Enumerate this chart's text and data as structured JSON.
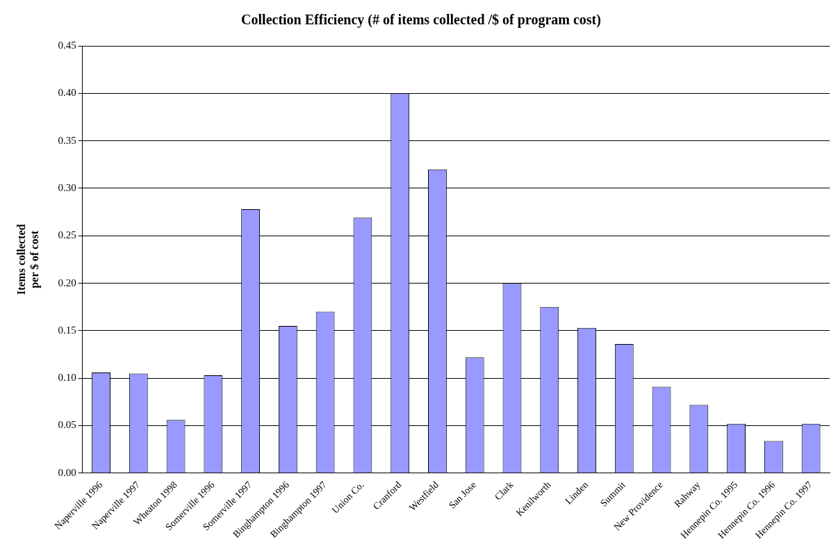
{
  "chart_data": {
    "type": "bar",
    "title": "Collection Efficiency (# of items collected /$ of program cost)",
    "ylabel": "Items collected\nper $ of cost",
    "categories": [
      "Naperville 1996",
      "Naperville 1997",
      "Wheaton 1998",
      "Somerville 1996",
      "Somerville 1997",
      "Binghampton 1996",
      "Binghampton 1997",
      "Union Co.",
      "Cranford",
      "Westfield",
      "San Jose",
      "Clark",
      "Kenilworth",
      "Linden",
      "Summit",
      "New Providence",
      "Rahway",
      "Hennepin Co. 1995",
      "Hennepin Co. 1996",
      "Hennepin Co. 1997"
    ],
    "values": [
      0.106,
      0.105,
      0.056,
      0.103,
      0.278,
      0.155,
      0.17,
      0.269,
      0.4,
      0.32,
      0.122,
      0.2,
      0.175,
      0.153,
      0.136,
      0.091,
      0.072,
      0.052,
      0.034,
      0.052
    ],
    "color": "#9999ff",
    "ylim": [
      0,
      0.45
    ],
    "yticks": [
      {
        "value": 0,
        "label": "0.00"
      },
      {
        "value": 0.05,
        "label": "0.05"
      },
      {
        "value": 0.1,
        "label": "0.10"
      },
      {
        "value": 0.15,
        "label": "0.15"
      },
      {
        "value": 0.2,
        "label": "0.20"
      },
      {
        "value": 0.25,
        "label": "0.25"
      },
      {
        "value": 0.3,
        "label": "0.30"
      },
      {
        "value": 0.35,
        "label": "0.35"
      },
      {
        "value": 0.4,
        "label": "0.40"
      },
      {
        "value": 0.45,
        "label": "0.45"
      }
    ],
    "grid": "y",
    "legend": false
  }
}
